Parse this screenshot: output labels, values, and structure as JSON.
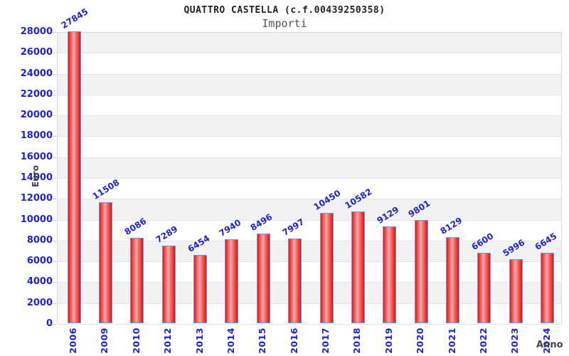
{
  "header": {
    "title": "QUATTRO CASTELLA (c.f.00439250358)",
    "subtitle": "Importi"
  },
  "chart_data": {
    "type": "bar",
    "title": "QUATTRO CASTELLA (c.f.00439250358)",
    "subtitle": "Importi",
    "xlabel": "Anno",
    "ylabel": "Euro",
    "categories": [
      "2006",
      "2009",
      "2010",
      "2012",
      "2013",
      "2014",
      "2015",
      "2016",
      "2017",
      "2018",
      "2019",
      "2020",
      "2021",
      "2022",
      "2023",
      "2024"
    ],
    "values": [
      27845,
      11508,
      8086,
      7289,
      6454,
      7940,
      8496,
      7997,
      10450,
      10582,
      9129,
      9801,
      8129,
      6600,
      5996,
      6645
    ],
    "ylim": [
      0,
      28000
    ],
    "ytick_step": 2000,
    "grid": "alternating horizontal bands, gridline at each ytick",
    "legend": "none",
    "colors": {
      "tick_label": "#2222cc",
      "value_label": "#2222cc",
      "bar_edge": "#ee1515",
      "bar_center": "#f2a8a8",
      "bar_border": "#58a0f0",
      "band_gray": "#f2f2f2",
      "band_white": "#ffffff",
      "gridline": "#e4e4e4",
      "axis_title": "#444444",
      "title_text": "#222222",
      "subtitle_text": "#555555"
    }
  }
}
